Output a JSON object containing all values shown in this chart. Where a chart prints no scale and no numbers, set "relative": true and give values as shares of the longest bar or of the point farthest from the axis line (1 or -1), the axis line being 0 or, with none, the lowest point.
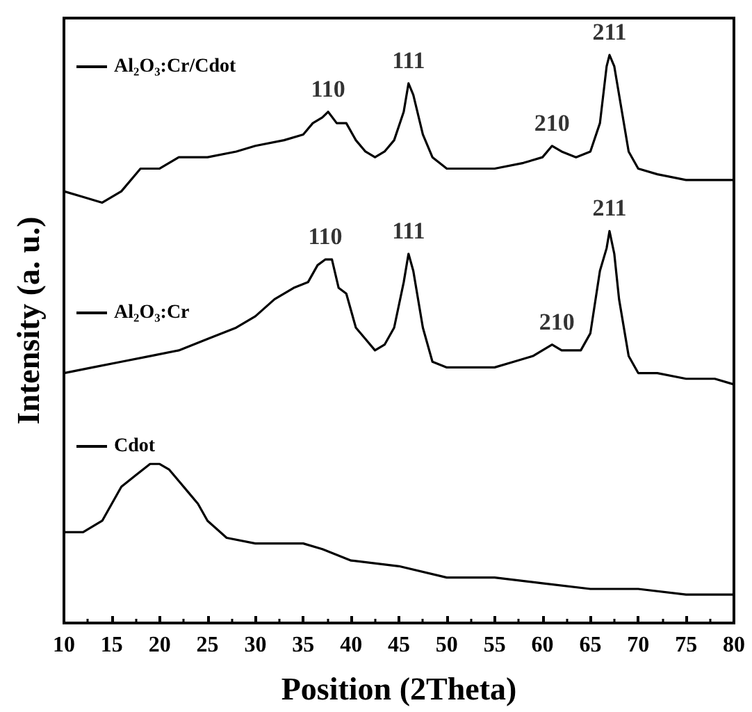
{
  "chart_data": {
    "type": "line",
    "relative": true,
    "xlabel": "Position (2Theta)",
    "ylabel": "Intensity (a. u.)",
    "xlim": [
      10,
      80
    ],
    "xticks": [
      10,
      15,
      20,
      25,
      30,
      35,
      40,
      45,
      50,
      55,
      60,
      65,
      70,
      75,
      80
    ],
    "legend": "left",
    "grid": false,
    "marker": "none",
    "line_style": "solid",
    "series": [
      {
        "name": "Al₂O₃:Cr/Cdot",
        "color": "#000000",
        "x": [
          10,
          12,
          14,
          16,
          18,
          20,
          22,
          25,
          28,
          30,
          33,
          35,
          36,
          37,
          37.6,
          38.5,
          39.5,
          40.5,
          41.5,
          42.5,
          43.5,
          44.5,
          45.5,
          46,
          46.5,
          47.5,
          48.5,
          50,
          52,
          55,
          58,
          60,
          61,
          62,
          63.5,
          65,
          66,
          66.7,
          67,
          67.5,
          68.3,
          69,
          70,
          72,
          75,
          78,
          80
        ],
        "values": [
          0.76,
          0.75,
          0.74,
          0.76,
          0.8,
          0.8,
          0.82,
          0.82,
          0.83,
          0.84,
          0.85,
          0.86,
          0.88,
          0.89,
          0.9,
          0.88,
          0.88,
          0.85,
          0.83,
          0.82,
          0.83,
          0.85,
          0.9,
          0.95,
          0.93,
          0.86,
          0.82,
          0.8,
          0.8,
          0.8,
          0.81,
          0.82,
          0.84,
          0.83,
          0.82,
          0.83,
          0.88,
          0.98,
          1.0,
          0.98,
          0.9,
          0.83,
          0.8,
          0.79,
          0.78,
          0.78,
          0.78
        ]
      },
      {
        "name": "Al₂O₃:Cr",
        "color": "#000000",
        "x": [
          10,
          13,
          16,
          19,
          22,
          25,
          28,
          30,
          32,
          34,
          35.5,
          36.5,
          37.3,
          38,
          38.7,
          39.5,
          40.5,
          41.5,
          42.5,
          43.5,
          44.5,
          45.5,
          46,
          46.5,
          47.5,
          48.5,
          50,
          53,
          55,
          57,
          59,
          61,
          62,
          64,
          65,
          66,
          66.7,
          67,
          67.5,
          68,
          69,
          70,
          72,
          75,
          78,
          80
        ],
        "values": [
          0.44,
          0.45,
          0.46,
          0.47,
          0.48,
          0.5,
          0.52,
          0.54,
          0.57,
          0.59,
          0.6,
          0.63,
          0.64,
          0.64,
          0.59,
          0.58,
          0.52,
          0.5,
          0.48,
          0.49,
          0.52,
          0.6,
          0.65,
          0.62,
          0.52,
          0.46,
          0.45,
          0.45,
          0.45,
          0.46,
          0.47,
          0.49,
          0.48,
          0.48,
          0.51,
          0.62,
          0.66,
          0.69,
          0.65,
          0.57,
          0.47,
          0.44,
          0.44,
          0.43,
          0.43,
          0.42
        ]
      },
      {
        "name": "Cdot",
        "color": "#000000",
        "x": [
          10,
          12,
          14,
          16,
          17.5,
          19,
          20,
          21,
          22,
          23,
          24,
          25,
          27,
          30,
          35,
          37,
          40,
          45,
          50,
          55,
          60,
          65,
          70,
          75,
          80
        ],
        "values": [
          0.16,
          0.16,
          0.18,
          0.24,
          0.26,
          0.28,
          0.28,
          0.27,
          0.25,
          0.23,
          0.21,
          0.18,
          0.15,
          0.14,
          0.14,
          0.13,
          0.11,
          0.1,
          0.08,
          0.08,
          0.07,
          0.06,
          0.06,
          0.05,
          0.05
        ]
      }
    ],
    "annotations": [
      {
        "text": "110",
        "x": 37.6,
        "y": 0.9
      },
      {
        "text": "111",
        "x": 46,
        "y": 0.95
      },
      {
        "text": "210",
        "x": 61,
        "y": 0.84
      },
      {
        "text": "211",
        "x": 67,
        "y": 1.0
      },
      {
        "text": "110",
        "x": 37.3,
        "y": 0.64
      },
      {
        "text": "111",
        "x": 46,
        "y": 0.65
      },
      {
        "text": "210",
        "x": 61.5,
        "y": 0.49
      },
      {
        "text": "211",
        "x": 67,
        "y": 0.69
      }
    ]
  }
}
